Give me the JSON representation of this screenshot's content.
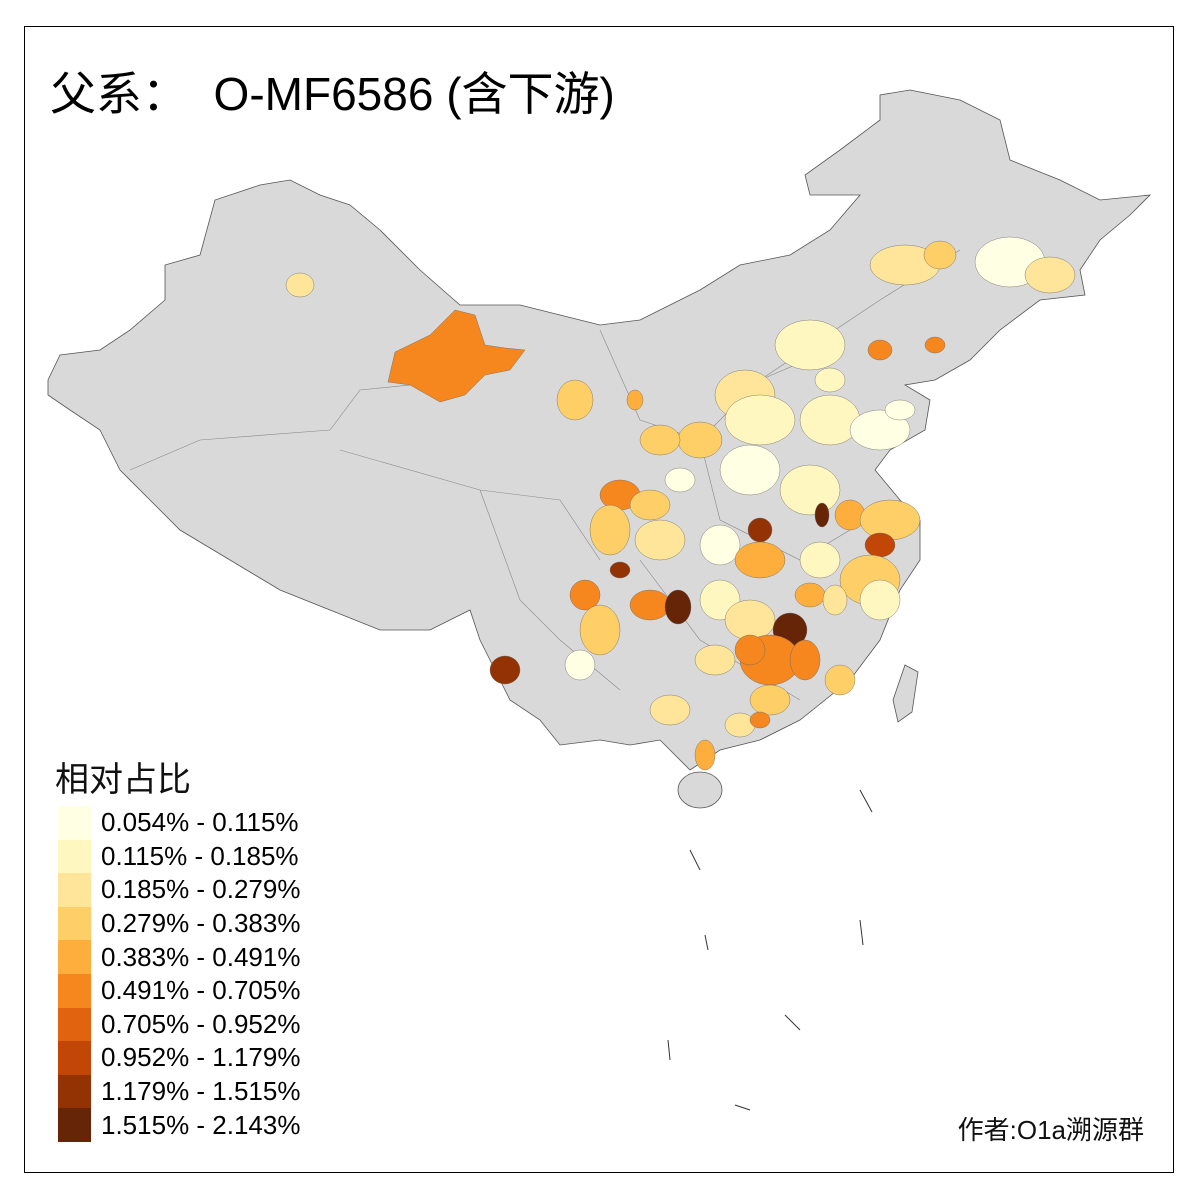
{
  "title": "父系：  O-MF6586 (含下游)",
  "legend": {
    "title": "相对占比",
    "items": [
      {
        "label": "0.054% - 0.115%",
        "color": "#FFFFE4"
      },
      {
        "label": "0.115% - 0.185%",
        "color": "#FFF6C0"
      },
      {
        "label": "0.185% - 0.279%",
        "color": "#FEE59A"
      },
      {
        "label": "0.279% - 0.383%",
        "color": "#FECF66"
      },
      {
        "label": "0.383% - 0.491%",
        "color": "#FDAE3D"
      },
      {
        "label": "0.491% - 0.705%",
        "color": "#F6871F"
      },
      {
        "label": "0.705% - 0.952%",
        "color": "#E1620F"
      },
      {
        "label": "0.952% - 1.179%",
        "color": "#C24606"
      },
      {
        "label": "1.179% - 1.515%",
        "color": "#933304"
      },
      {
        "label": "1.515% - 2.143%",
        "color": "#662506"
      }
    ]
  },
  "no_data_color": "#D9D9D9",
  "credit": "作者:O1a溯源群"
}
